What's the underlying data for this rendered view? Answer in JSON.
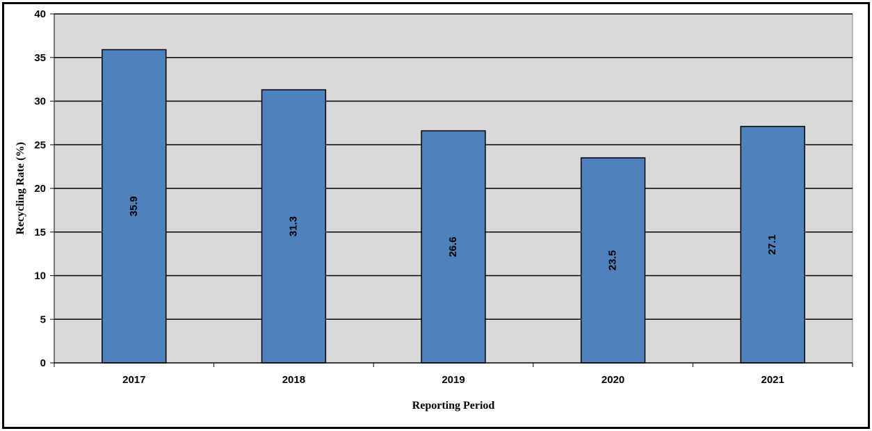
{
  "chart_data": {
    "type": "bar",
    "categories": [
      "2017",
      "2018",
      "2019",
      "2020",
      "2021"
    ],
    "values": [
      35.9,
      31.3,
      26.6,
      23.5,
      27.1
    ],
    "data_labels": [
      "35.9",
      "31.3",
      "26.6",
      "23.5",
      "27.1"
    ],
    "title": "",
    "xlabel": "Reporting Period",
    "ylabel": "Recycling Rate (%)",
    "ylim": [
      0,
      40
    ],
    "yticks": [
      "0",
      "5",
      "10",
      "15",
      "20",
      "25",
      "30",
      "35",
      "40"
    ],
    "ytick_values": [
      0,
      5,
      10,
      15,
      20,
      25,
      30,
      35,
      40
    ],
    "grid": true,
    "colors": {
      "bar": "#4f81bd",
      "plot_background": "#d9d9d9",
      "gridline": "#000000",
      "frame": "#000000"
    }
  }
}
